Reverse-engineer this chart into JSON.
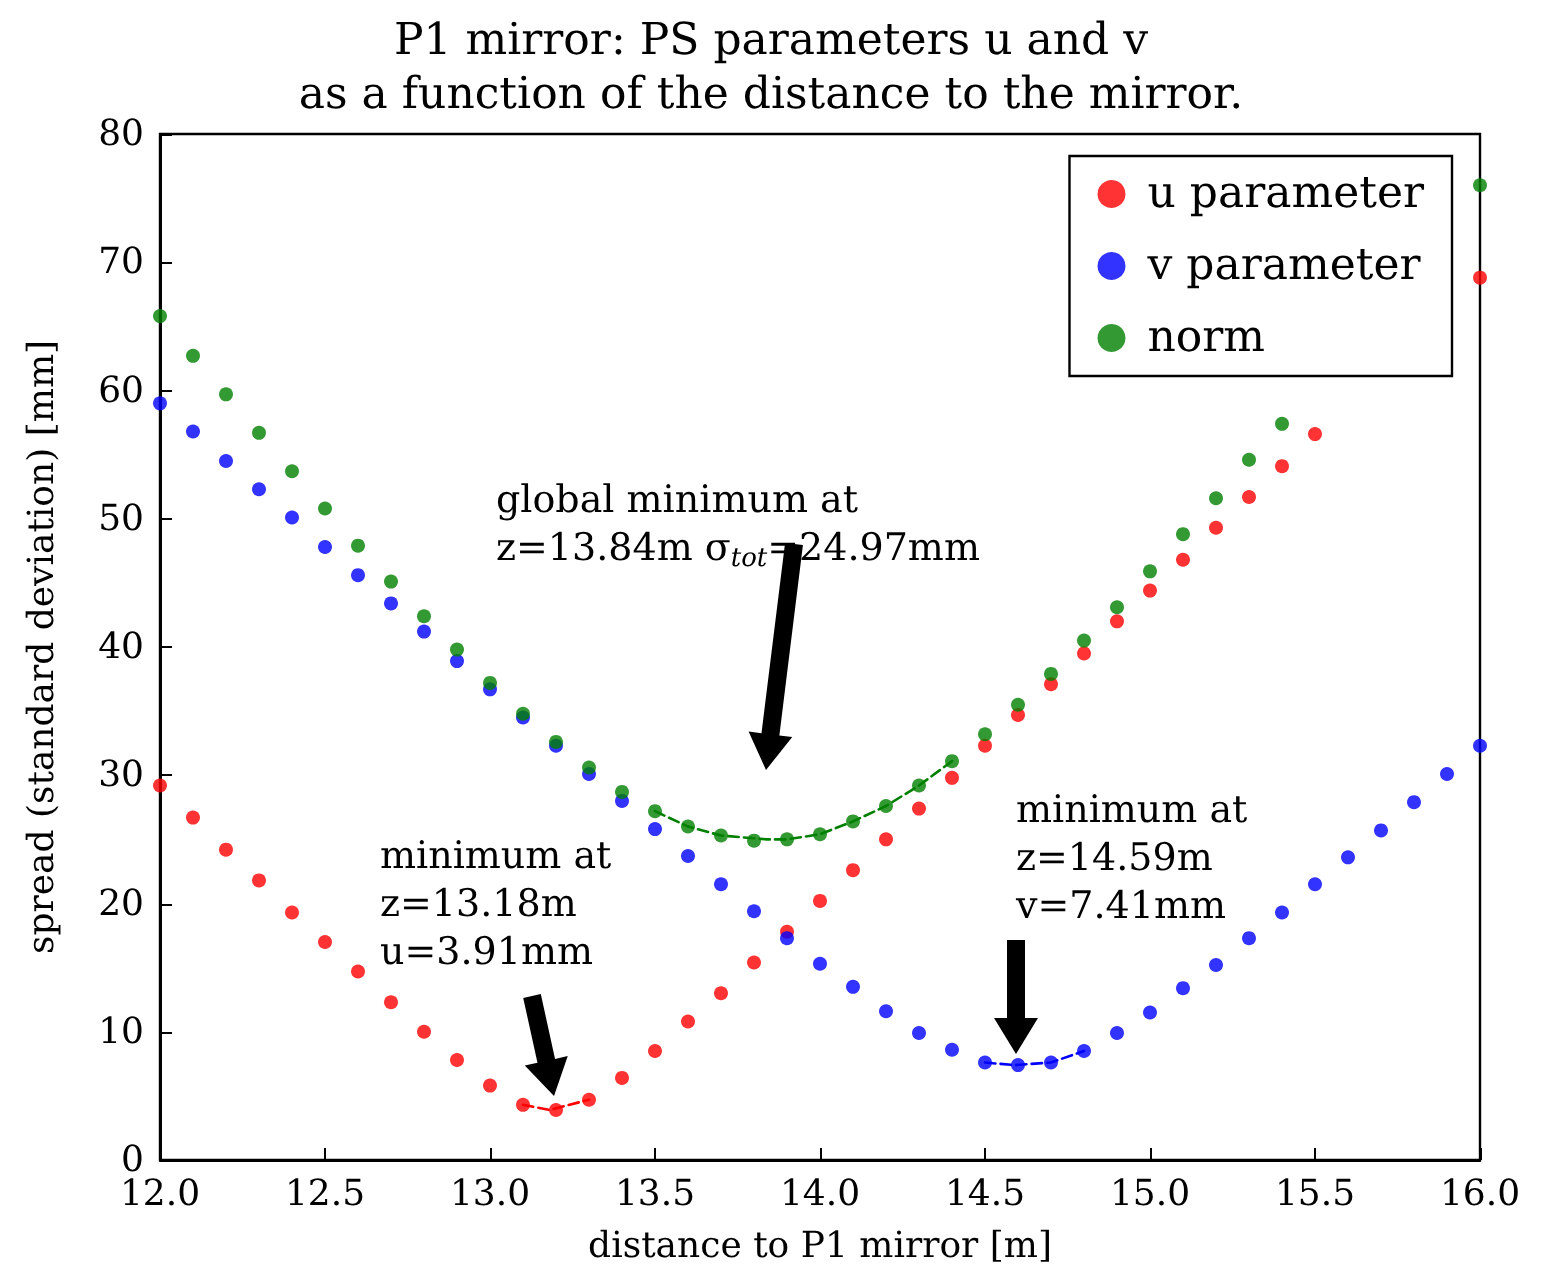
{
  "chart_data": {
    "type": "scatter",
    "title": "P1 mirror: PS parameters u and v\nas a function of the distance to the mirror.",
    "xlabel": "distance to P1 mirror [m]",
    "ylabel": "spread (standard deviation) [mm]",
    "x": [
      12.0,
      12.1,
      12.2,
      12.3,
      12.4,
      12.5,
      12.6,
      12.7,
      12.8,
      12.9,
      13.0,
      13.1,
      13.2,
      13.3,
      13.4,
      13.5,
      13.6,
      13.7,
      13.8,
      13.9,
      14.0,
      14.1,
      14.2,
      14.3,
      14.4,
      14.5,
      14.6,
      14.7,
      14.8,
      14.9,
      15.0,
      15.1,
      15.2,
      15.3,
      15.4,
      15.5,
      15.6,
      15.7,
      15.8,
      15.9,
      16.0
    ],
    "series": [
      {
        "name": "u parameter",
        "color": "#ff0000",
        "values": [
          29.2,
          26.7,
          24.2,
          21.8,
          19.3,
          17.0,
          14.7,
          12.3,
          10.0,
          7.8,
          5.8,
          4.3,
          3.9,
          4.7,
          6.4,
          8.5,
          10.8,
          13.0,
          15.4,
          17.8,
          20.2,
          22.6,
          25.0,
          27.4,
          29.8,
          32.3,
          34.7,
          37.1,
          39.5,
          42.0,
          44.4,
          46.8,
          49.3,
          51.7,
          54.1,
          56.6,
          null,
          null,
          null,
          null,
          68.8
        ]
      },
      {
        "name": "v parameter",
        "color": "#0000ff",
        "values": [
          59.0,
          56.8,
          54.5,
          52.3,
          50.1,
          47.8,
          45.6,
          43.4,
          41.2,
          38.9,
          36.7,
          34.5,
          32.3,
          30.1,
          28.0,
          25.8,
          23.7,
          21.5,
          19.4,
          17.3,
          15.3,
          13.5,
          11.6,
          9.9,
          8.6,
          7.6,
          7.4,
          7.6,
          8.5,
          9.9,
          11.5,
          13.4,
          15.2,
          17.3,
          19.3,
          21.5,
          23.6,
          25.7,
          27.9,
          30.1,
          32.3
        ]
      },
      {
        "name": "norm",
        "color": "#008000",
        "values": [
          65.8,
          62.7,
          59.7,
          56.7,
          53.7,
          50.8,
          47.9,
          45.1,
          42.4,
          39.8,
          37.2,
          34.8,
          32.6,
          30.6,
          28.7,
          27.2,
          26.0,
          25.3,
          24.9,
          25.0,
          25.4,
          26.4,
          27.6,
          29.2,
          31.1,
          33.2,
          35.5,
          37.9,
          40.5,
          43.1,
          45.9,
          48.8,
          51.6,
          54.6,
          57.4,
          null,
          null,
          null,
          null,
          null,
          76.0
        ]
      },
      {
        "type": "line",
        "color": "#ff0000",
        "marker": "none",
        "line_style": "dashed",
        "x": [
          13.1,
          13.18,
          13.3
        ],
        "values": [
          4.3,
          3.9,
          4.7
        ]
      },
      {
        "type": "line",
        "color": "#0000ff",
        "marker": "none",
        "line_style": "dashed",
        "x": [
          14.5,
          14.59,
          14.7,
          14.8
        ],
        "values": [
          7.6,
          7.4,
          7.6,
          8.5
        ]
      },
      {
        "type": "line",
        "color": "#008000",
        "marker": "none",
        "line_style": "dashed",
        "x": [
          13.5,
          13.6,
          13.7,
          13.84,
          13.9,
          14.0,
          14.1,
          14.2,
          14.3,
          14.4
        ],
        "values": [
          27.2,
          26.0,
          25.3,
          25.0,
          25.0,
          25.4,
          26.4,
          27.6,
          29.2,
          31.1
        ]
      }
    ],
    "xlim": [
      12,
      16
    ],
    "xticks": [
      {
        "value": 12,
        "label": "12.0"
      },
      {
        "value": 12.5,
        "label": "12.5"
      },
      {
        "value": 13,
        "label": "13.0"
      },
      {
        "value": 13.5,
        "label": "13.5"
      },
      {
        "value": 14,
        "label": "14.0"
      },
      {
        "value": 14.5,
        "label": "14.5"
      },
      {
        "value": 15,
        "label": "15.0"
      },
      {
        "value": 15.5,
        "label": "15.5"
      },
      {
        "value": 16,
        "label": "16.0"
      }
    ],
    "ylim": [
      0,
      80
    ],
    "yticks": [
      0,
      10,
      20,
      30,
      40,
      50,
      60,
      70,
      80
    ],
    "marker": "circle",
    "grid": false,
    "legend": "top right",
    "annotations": [
      "global minimum at\nz=13.84m σ$_{tot}$=24.97mm",
      "minimum at\nz=13.18m\nu=3.91mm",
      "minimum at\nz=14.59m\nv=7.41mm"
    ]
  }
}
